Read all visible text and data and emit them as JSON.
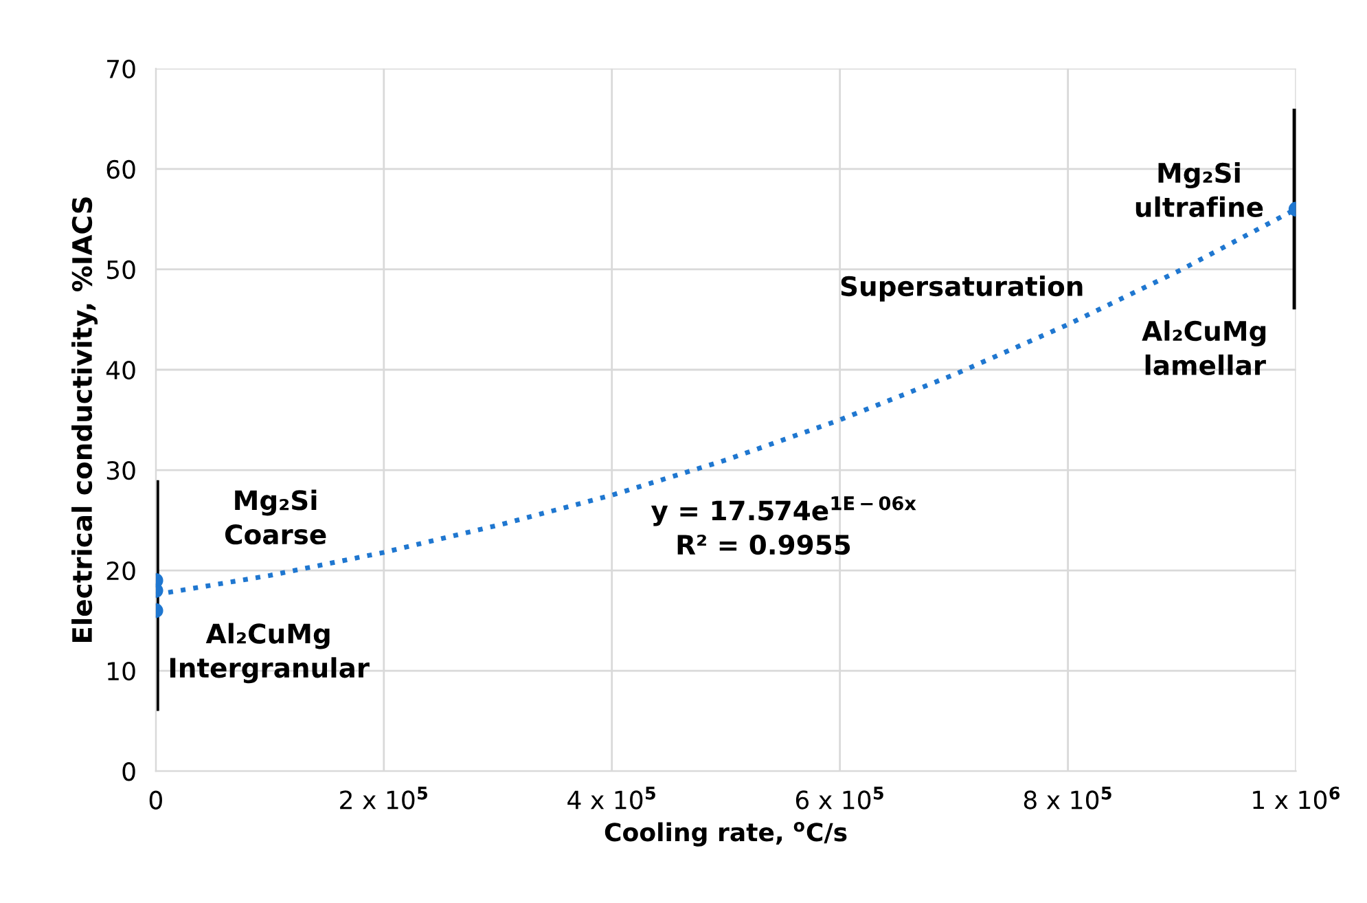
{
  "chart_data": {
    "type": "scatter",
    "xlabel": "Cooling rate, $^{o}$C/s",
    "ylabel": "Electrical conductivity, %IACS",
    "xlim": [
      0,
      1000000
    ],
    "xticks": [
      0,
      {
        "value": 200000,
        "label": "2 x 10$^{5}$"
      },
      {
        "value": 400000,
        "label": "4 x 10$^{5}$"
      },
      {
        "value": 600000,
        "label": "6 x 10$^{5}$"
      },
      {
        "value": 800000,
        "label": "8 x 10$^{5}$"
      },
      {
        "value": 1000000,
        "label": "1 x 10$^{6}$"
      }
    ],
    "ylim": [
      0,
      70
    ],
    "yticks": [
      0,
      10,
      20,
      30,
      40,
      50,
      60,
      70
    ],
    "grid": true,
    "legend": false,
    "series": [
      {
        "color": "#1f77d0",
        "marker": "circle",
        "x": [
          0,
          0,
          0,
          1000000
        ],
        "values": [
          19,
          18,
          16,
          56
        ],
        "errors": [
          null,
          [
            6,
            29
          ],
          null,
          [
            46,
            66
          ]
        ]
      },
      {
        "type": "line",
        "color": "#1f77d0",
        "marker": "none",
        "line_style": "dotted",
        "x": [
          0,
          100000,
          200000,
          300000,
          400000,
          500000,
          600000,
          700000,
          800000,
          900000,
          1000000
        ],
        "values": [
          17.6,
          19.5,
          21.8,
          24.5,
          27.5,
          31,
          35,
          39.5,
          44.5,
          50,
          56
        ]
      }
    ],
    "annotations": [
      "Mg₂Si\nCoarse",
      "Al₂CuMg\nIntergranular",
      "Mg₂Si\nultrafine",
      "Supersaturation",
      "Al₂CuMg\nlamellar",
      "y = 17.574e$^{1E−06x}$",
      "R² = 0.9955"
    ]
  }
}
